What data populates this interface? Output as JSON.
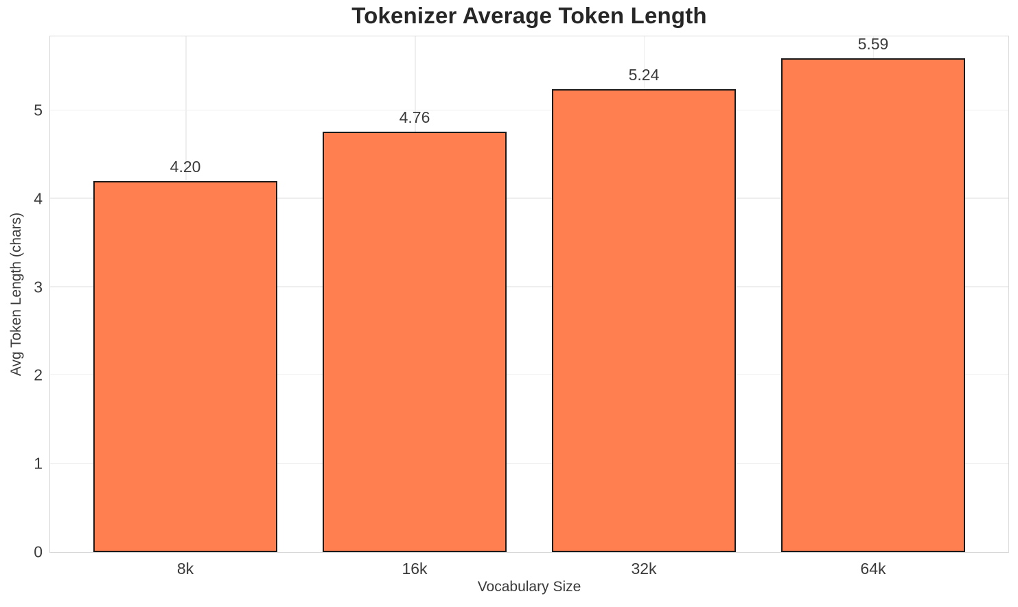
{
  "chart_data": {
    "type": "bar",
    "title": "Tokenizer Average Token Length",
    "xlabel": "Vocabulary Size",
    "ylabel": "Avg Token Length (chars)",
    "categories": [
      "8k",
      "16k",
      "32k",
      "64k"
    ],
    "values": [
      4.2,
      4.76,
      5.24,
      5.59
    ],
    "value_labels": [
      "4.20",
      "4.76",
      "5.24",
      "5.59"
    ],
    "yticks": [
      0,
      1,
      2,
      3,
      4,
      5
    ],
    "ylim": [
      0,
      5.84
    ],
    "xlim": [
      -0.59,
      3.59
    ],
    "bar_width": 0.8,
    "grid": true,
    "legend": false,
    "bar_color": "#FF7F50",
    "bar_edge_color": "#1a1a1a",
    "grid_color": "#eeeeee",
    "spine_color": "#d8d8d8",
    "text_color": "#3a3a3a",
    "title_color": "#262626"
  }
}
